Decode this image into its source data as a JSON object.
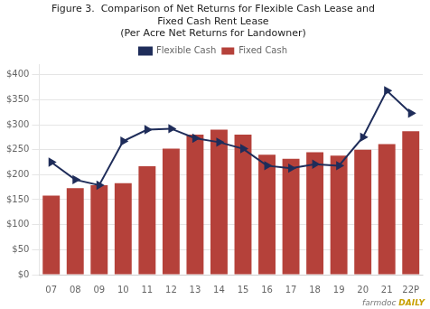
{
  "chart_data": {
    "type": "bar",
    "title": [
      "Figure 3.  Comparison of Net Returns for Flexible Cash Lease and",
      "Fixed Cash Rent Lease",
      "(Per Acre Net Returns for Landowner)"
    ],
    "categories": [
      "07",
      "08",
      "09",
      "10",
      "11",
      "12",
      "13",
      "14",
      "15",
      "16",
      "17",
      "18",
      "19",
      "20",
      "21",
      "22P"
    ],
    "series": [
      {
        "name": "Fixed Cash",
        "type": "bar",
        "color": "#b5413a",
        "values": [
          158,
          173,
          179,
          183,
          217,
          252,
          280,
          290,
          280,
          240,
          232,
          245,
          238,
          250,
          261,
          287
        ]
      },
      {
        "name": "Flexible Cash",
        "type": "line",
        "color": "#1f2d5a",
        "marker": "triangle-right",
        "values": [
          225,
          190,
          179,
          267,
          290,
          292,
          273,
          265,
          252,
          218,
          213,
          221,
          218,
          275,
          368,
          323
        ]
      }
    ],
    "ylim": [
      0,
      420
    ],
    "yticks": [
      {
        "value": 0,
        "label": "$0"
      },
      {
        "value": 50,
        "label": "$50"
      },
      {
        "value": 100,
        "label": "$100"
      },
      {
        "value": 150,
        "label": "$150"
      },
      {
        "value": 200,
        "label": "$200"
      },
      {
        "value": 250,
        "label": "$250"
      },
      {
        "value": 300,
        "label": "$300"
      },
      {
        "value": 350,
        "label": "$350"
      },
      {
        "value": 400,
        "label": "$400"
      }
    ],
    "grid": true,
    "legend": "top",
    "annotations": [
      {
        "text": "farmdoc",
        "color": "#777777"
      },
      {
        "text": "DAILY",
        "color": "#c8a000"
      }
    ]
  }
}
